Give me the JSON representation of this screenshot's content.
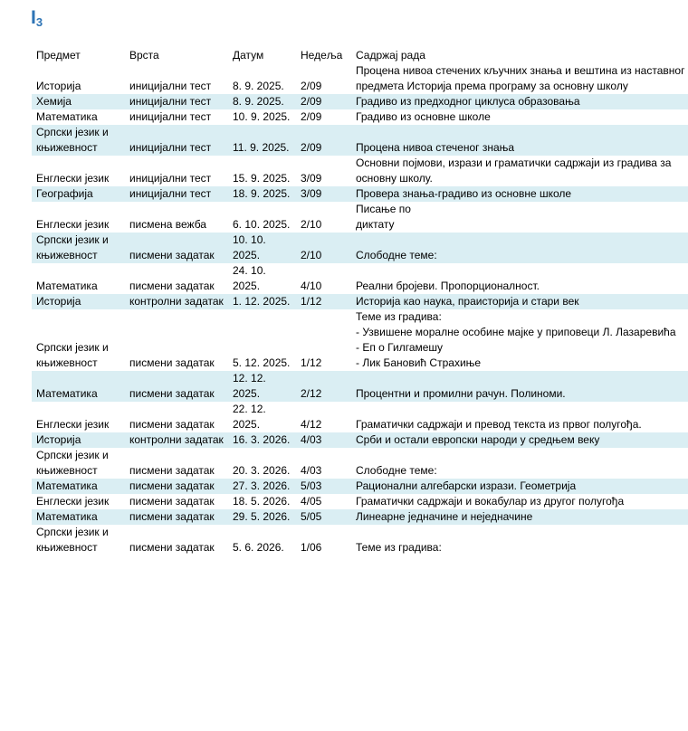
{
  "header": {
    "title": "I",
    "title_sub": "3"
  },
  "table": {
    "columns": [
      "Предмет",
      "Врста",
      "Датум",
      "Недеља",
      "Садржај рада"
    ],
    "rows": [
      [
        "Историја",
        "иницијални тест",
        "8. 9. 2025.",
        "2/09",
        "Процена нивоа стечених кључних знања и вештина из наставног предмета Историја према програму за основну школу"
      ],
      [
        "Хемија",
        "иницијални тест",
        "8. 9. 2025.",
        "2/09",
        "Градиво из предходног циклуса образовања"
      ],
      [
        "Математика",
        "иницијални тест",
        "10. 9. 2025.",
        "2/09",
        "Градиво из основне школе"
      ],
      [
        "Српски језик и књижевност",
        "иницијални тест",
        "11. 9. 2025.",
        "2/09",
        "Процена нивоа стеченог знања"
      ],
      [
        "Енглески језик",
        "иницијални тест",
        "15. 9. 2025.",
        "3/09",
        "Основни појмови, изрази и граматички садржаји из градива за основну школу."
      ],
      [
        "Географија",
        "иницијални тест",
        "18. 9. 2025.",
        "3/09",
        "Провера знања-градиво из основне школе"
      ],
      [
        "Енглески језик",
        "писмена вежба",
        "6. 10. 2025.",
        "2/10",
        "Писање по\nдиктату"
      ],
      [
        "Српски језик и књижевност",
        "писмени задатак",
        "10. 10. 2025.",
        "2/10",
        "Слободне теме:"
      ],
      [
        "Математика",
        "писмени задатак",
        "24. 10. 2025.",
        "4/10",
        "Реални бројеви. Пропорционалност."
      ],
      [
        "Историја",
        "контролни задатак",
        "1. 12. 2025.",
        "1/12",
        "Историја као наука, праисторија и стари век"
      ],
      [
        "Српски језик и књижевност",
        "писмени задатак",
        "5. 12. 2025.",
        "1/12",
        "Теме из градива:\n- Узвишене моралне особине мајке у приповеци Л. Лазаревића\n- Еп о Гилгамешу\n- Лик Бановић Страхиње"
      ],
      [
        "Математика",
        "писмени задатак",
        "12. 12. 2025.",
        "2/12",
        "Процентни и промилни рачун. Полиноми."
      ],
      [
        "Енглески језик",
        "писмени задатак",
        "22. 12. 2025.",
        "4/12",
        "Граматички садржаји и превод текста из првог полугођа."
      ],
      [
        "Историја",
        "контролни задатак",
        "16. 3. 2026.",
        "4/03",
        "Срби и остали европски народи у средњем веку"
      ],
      [
        "Српски језик и књижевност",
        "писмени задатак",
        "20. 3. 2026.",
        "4/03",
        "Слободне теме:"
      ],
      [
        "Математика",
        "писмени задатак",
        "27. 3. 2026.",
        "5/03",
        "Рационални алгебарски изрази. Геометрија"
      ],
      [
        "Енглески језик",
        "писмени задатак",
        "18. 5. 2026.",
        "4/05",
        "Граматички садржаји и вокабулар из другог полугођа"
      ],
      [
        "Математика",
        "писмени задатак",
        "29. 5. 2026.",
        "5/05",
        "Линеарне једначине и неједначине"
      ],
      [
        "Српски језик и књижевност",
        "писмени задатак",
        "5. 6. 2026.",
        "1/06",
        "Теме из градива:"
      ]
    ]
  }
}
